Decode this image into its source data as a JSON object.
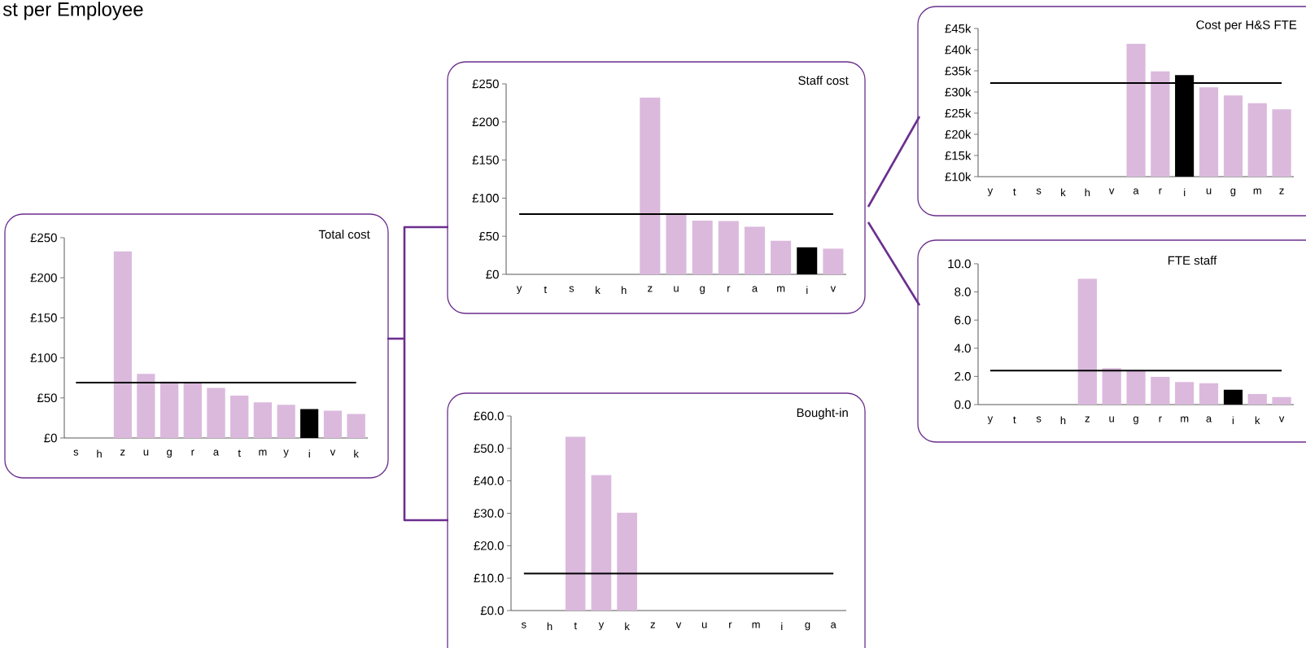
{
  "chart_data": [
    {
      "type": "bar",
      "title": "Total cost",
      "annotations": [
        "st per Employee"
      ],
      "categories": [
        "s",
        "h",
        "z",
        "u",
        "g",
        "r",
        "a",
        "t",
        "m",
        "y",
        "i",
        "v",
        "k"
      ],
      "values": [
        null,
        null,
        233,
        80,
        70.5,
        69.5,
        62.5,
        53,
        44.5,
        41.5,
        36,
        34,
        30
      ],
      "colors": [
        "#dbb9dd",
        "#dbb9dd",
        "#dbb9dd",
        "#dbb9dd",
        "#dbb9dd",
        "#dbb9dd",
        "#dbb9dd",
        "#dbb9dd",
        "#dbb9dd",
        "#dbb9dd",
        "#000000",
        "#dbb9dd",
        "#dbb9dd"
      ],
      "ylim": [
        0,
        250
      ],
      "yticks": [
        {
          "value": 0,
          "label": "£0"
        },
        {
          "value": 50,
          "label": "£50"
        },
        {
          "value": 100,
          "label": "£100"
        },
        {
          "value": 150,
          "label": "£150"
        },
        {
          "value": 200,
          "label": "£200"
        },
        {
          "value": 250,
          "label": "£250"
        }
      ],
      "ref_lines": [
        {
          "axis": "y",
          "value": 69,
          "color": "#000000"
        }
      ]
    },
    {
      "type": "bar",
      "title": "Staff cost",
      "categories": [
        "y",
        "t",
        "s",
        "k",
        "h",
        "z",
        "u",
        "g",
        "r",
        "a",
        "m",
        "i",
        "v"
      ],
      "values": [
        null,
        null,
        null,
        null,
        null,
        232,
        79,
        70.5,
        70,
        62.5,
        44,
        35.5,
        34
      ],
      "colors": [
        "#dbb9dd",
        "#dbb9dd",
        "#dbb9dd",
        "#dbb9dd",
        "#dbb9dd",
        "#dbb9dd",
        "#dbb9dd",
        "#dbb9dd",
        "#dbb9dd",
        "#dbb9dd",
        "#dbb9dd",
        "#000000",
        "#dbb9dd"
      ],
      "ylim": [
        0,
        250
      ],
      "yticks": [
        {
          "value": 0,
          "label": "£0"
        },
        {
          "value": 50,
          "label": "£50"
        },
        {
          "value": 100,
          "label": "£100"
        },
        {
          "value": 150,
          "label": "£150"
        },
        {
          "value": 200,
          "label": "£200"
        },
        {
          "value": 250,
          "label": "£250"
        }
      ],
      "ref_lines": [
        {
          "axis": "y",
          "value": 79,
          "color": "#000000"
        }
      ]
    },
    {
      "type": "bar",
      "title": "Bought-in",
      "categories": [
        "s",
        "h",
        "t",
        "y",
        "k",
        "z",
        "v",
        "u",
        "r",
        "m",
        "i",
        "g",
        "a"
      ],
      "values": [
        null,
        null,
        53.6,
        41.8,
        30.2,
        null,
        null,
        null,
        null,
        null,
        null,
        null,
        null
      ],
      "colors": [
        "#dbb9dd",
        "#dbb9dd",
        "#dbb9dd",
        "#dbb9dd",
        "#dbb9dd",
        "#dbb9dd",
        "#dbb9dd",
        "#dbb9dd",
        "#dbb9dd",
        "#dbb9dd",
        "#dbb9dd",
        "#dbb9dd",
        "#dbb9dd"
      ],
      "ylim": [
        0,
        60
      ],
      "yticks": [
        {
          "value": 0,
          "label": "£0.0"
        },
        {
          "value": 10,
          "label": "£10.0"
        },
        {
          "value": 20,
          "label": "£20.0"
        },
        {
          "value": 30,
          "label": "£30.0"
        },
        {
          "value": 40,
          "label": "£40.0"
        },
        {
          "value": 50,
          "label": "£50.0"
        },
        {
          "value": 60,
          "label": "£60.0"
        }
      ],
      "ref_lines": [
        {
          "axis": "y",
          "value": 11.4,
          "color": "#000000"
        }
      ]
    },
    {
      "type": "bar",
      "title": "Cost per H&S FTE",
      "categories": [
        "y",
        "t",
        "s",
        "k",
        "h",
        "v",
        "a",
        "r",
        "i",
        "u",
        "g",
        "m",
        "z"
      ],
      "values": [
        null,
        null,
        null,
        null,
        null,
        null,
        41.4,
        34.9,
        34,
        31.1,
        29.2,
        27.4,
        25.9
      ],
      "colors": [
        "#dbb9dd",
        "#dbb9dd",
        "#dbb9dd",
        "#dbb9dd",
        "#dbb9dd",
        "#dbb9dd",
        "#dbb9dd",
        "#dbb9dd",
        "#000000",
        "#dbb9dd",
        "#dbb9dd",
        "#dbb9dd",
        "#dbb9dd"
      ],
      "ylim": [
        10,
        45
      ],
      "yticks": [
        {
          "value": 10,
          "label": "£10k"
        },
        {
          "value": 15,
          "label": "£15k"
        },
        {
          "value": 20,
          "label": "£20k"
        },
        {
          "value": 25,
          "label": "£25k"
        },
        {
          "value": 30,
          "label": "£30k"
        },
        {
          "value": 35,
          "label": "£35k"
        },
        {
          "value": 40,
          "label": "£40k"
        },
        {
          "value": 45,
          "label": "£45k"
        }
      ],
      "ref_lines": [
        {
          "axis": "y",
          "value": 32.1,
          "color": "#000000"
        }
      ]
    },
    {
      "type": "bar",
      "title": "FTE staff",
      "categories": [
        "y",
        "t",
        "s",
        "h",
        "z",
        "u",
        "g",
        "r",
        "m",
        "a",
        "i",
        "k",
        "v"
      ],
      "values": [
        null,
        null,
        null,
        null,
        8.94,
        2.58,
        2.4,
        1.98,
        1.6,
        1.52,
        1.06,
        0.75,
        0.54
      ],
      "colors": [
        "#dbb9dd",
        "#dbb9dd",
        "#dbb9dd",
        "#dbb9dd",
        "#dbb9dd",
        "#dbb9dd",
        "#dbb9dd",
        "#dbb9dd",
        "#dbb9dd",
        "#dbb9dd",
        "#000000",
        "#dbb9dd",
        "#dbb9dd"
      ],
      "ylim": [
        0,
        10
      ],
      "yticks": [
        {
          "value": 0,
          "label": "0.0"
        },
        {
          "value": 2,
          "label": "2.0"
        },
        {
          "value": 4,
          "label": "4.0"
        },
        {
          "value": 6,
          "label": "6.0"
        },
        {
          "value": 8,
          "label": "8.0"
        },
        {
          "value": 10,
          "label": "10.0"
        }
      ],
      "ref_lines": [
        {
          "axis": "y",
          "value": 2.41,
          "color": "#000000"
        }
      ]
    }
  ]
}
